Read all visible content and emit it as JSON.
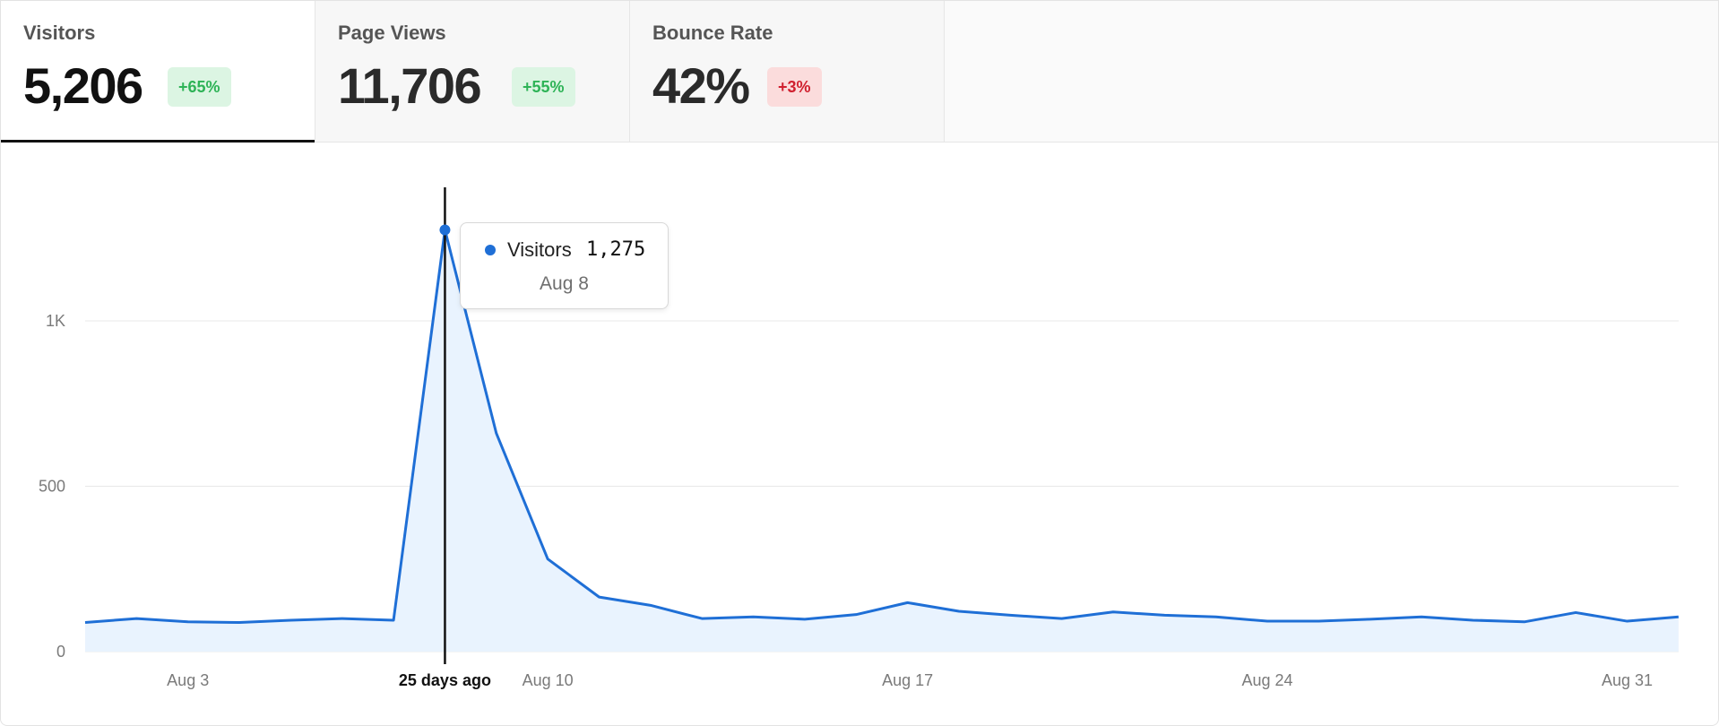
{
  "tabs": [
    {
      "title": "Visitors",
      "value": "5,206",
      "change": "+65%",
      "trend": "up",
      "active": true
    },
    {
      "title": "Page Views",
      "value": "11,706",
      "change": "+55%",
      "trend": "up",
      "active": false
    },
    {
      "title": "Bounce Rate",
      "value": "42%",
      "change": "+3%",
      "trend": "down",
      "active": false
    }
  ],
  "colors": {
    "line": "#1f6fd6",
    "fill": "#e9f3fe",
    "up_badge": "#dcf5e3",
    "down_badge": "#fbdcdc"
  },
  "chart_data": {
    "type": "area",
    "series": [
      {
        "name": "Visitors",
        "values": [
          88,
          100,
          90,
          88,
          95,
          100,
          95,
          1275,
          660,
          280,
          165,
          140,
          100,
          105,
          98,
          112,
          148,
          122,
          110,
          100,
          120,
          110,
          105,
          92,
          92,
          98,
          105,
          95,
          90,
          118,
          92,
          105
        ]
      }
    ],
    "x": [
      "Aug 1",
      "Aug 2",
      "Aug 3",
      "Aug 4",
      "Aug 5",
      "Aug 6",
      "Aug 7",
      "Aug 8",
      "Aug 9",
      "Aug 10",
      "Aug 11",
      "Aug 12",
      "Aug 13",
      "Aug 14",
      "Aug 15",
      "Aug 16",
      "Aug 17",
      "Aug 18",
      "Aug 19",
      "Aug 20",
      "Aug 21",
      "Aug 22",
      "Aug 23",
      "Aug 24",
      "Aug 25",
      "Aug 26",
      "Aug 27",
      "Aug 28",
      "Aug 29",
      "Aug 30",
      "Aug 31",
      "Sep 1"
    ],
    "x_ticks": [
      {
        "index": 2,
        "label": "Aug 3"
      },
      {
        "index": 9,
        "label": "Aug 10"
      },
      {
        "index": 16,
        "label": "Aug 17"
      },
      {
        "index": 23,
        "label": "Aug 24"
      },
      {
        "index": 30,
        "label": "Aug 31"
      }
    ],
    "y_ticks": [
      {
        "value": 0,
        "label": "0"
      },
      {
        "value": 500,
        "label": "500"
      },
      {
        "value": 1000,
        "label": "1K"
      }
    ],
    "ylim": [
      0,
      1400
    ],
    "grid": true,
    "hover": {
      "index": 7,
      "x_label": "25 days ago",
      "series_name": "Visitors",
      "value_label": "1,275",
      "date_label": "Aug 8"
    }
  }
}
